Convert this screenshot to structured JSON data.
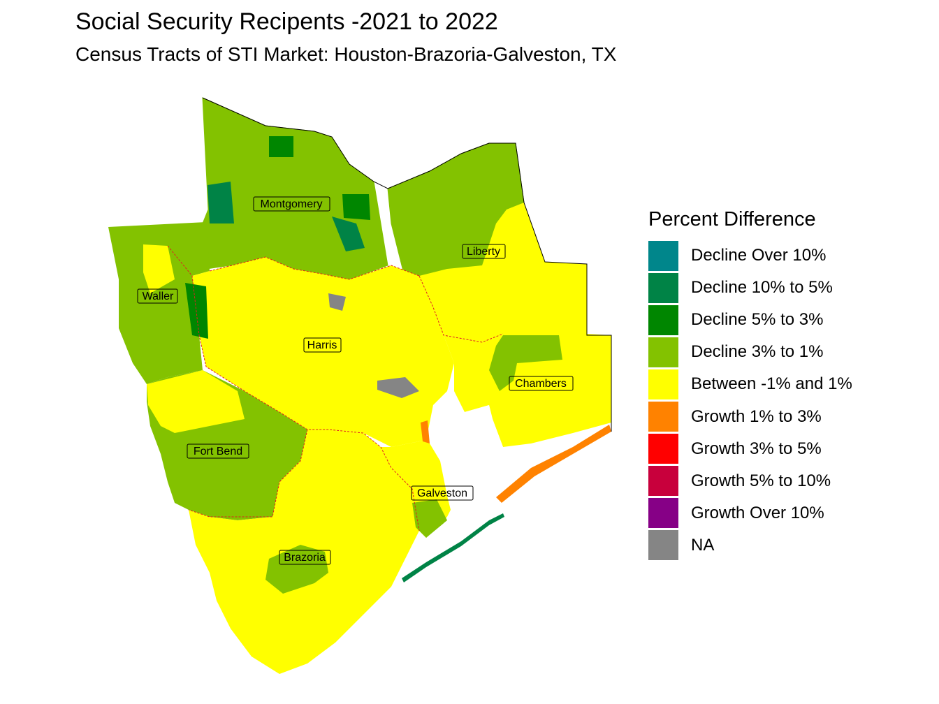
{
  "title": "Social Security Recipents -2021 to 2022",
  "subtitle": "Census Tracts of STI Market: Houston-Brazoria-Galveston, TX",
  "legend": {
    "title": "Percent Difference",
    "items": [
      {
        "label": "Decline Over 10%",
        "color": "#00868B"
      },
      {
        "label": "Decline 10% to 5%",
        "color": "#008346"
      },
      {
        "label": "Decline 5% to 3%",
        "color": "#008600"
      },
      {
        "label": "Decline 3% to 1%",
        "color": "#83C200"
      },
      {
        "label": "Between -1% and 1%",
        "color": "#FFFF00"
      },
      {
        "label": "Growth 1% to 3%",
        "color": "#FF8200"
      },
      {
        "label": "Growth 3% to 5%",
        "color": "#FF0000"
      },
      {
        "label": "Growth 5% to 10%",
        "color": "#C8003C"
      },
      {
        "label": "Growth Over 10%",
        "color": "#860086"
      },
      {
        "label": "NA",
        "color": "#858585"
      }
    ]
  },
  "counties": [
    {
      "name": "Montgomery"
    },
    {
      "name": "Liberty"
    },
    {
      "name": "Waller"
    },
    {
      "name": "Harris"
    },
    {
      "name": "Chambers"
    },
    {
      "name": "Fort Bend"
    },
    {
      "name": "Galveston"
    },
    {
      "name": "Brazoria"
    }
  ]
}
